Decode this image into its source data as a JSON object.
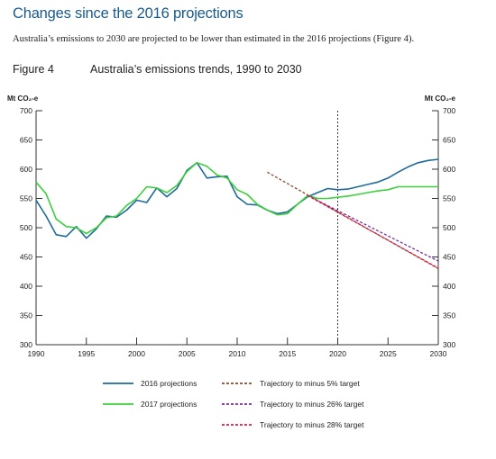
{
  "heading": "Changes since the 2016 projections",
  "intro": "Australia’s emissions to 2030 are projected to be lower than estimated in the 2016 projections (Figure 4).",
  "figure": {
    "number": "Figure 4",
    "title": "Australia’s emissions trends, 1990 to 2030"
  },
  "chart_data": {
    "type": "line",
    "title": "Australia’s emissions trends, 1990 to 2030",
    "ylabel_left": "Mt CO₂-e",
    "ylabel_right": "Mt CO₂-e",
    "xlim": [
      1990,
      2030
    ],
    "ylim": [
      300,
      700
    ],
    "x_ticks": [
      1990,
      1995,
      2000,
      2005,
      2010,
      2015,
      2020,
      2025,
      2030
    ],
    "y_ticks": [
      300,
      350,
      400,
      450,
      500,
      550,
      600,
      650,
      700
    ],
    "vertical_marker_x": 2020,
    "grid": false,
    "series": [
      {
        "name": "2016 projections",
        "color": "#1f6a9a",
        "style": "solid",
        "x": [
          1990,
          1991,
          1992,
          1993,
          1994,
          1995,
          1996,
          1997,
          1998,
          1999,
          2000,
          2001,
          2002,
          2003,
          2004,
          2005,
          2006,
          2007,
          2008,
          2009,
          2010,
          2011,
          2012,
          2013,
          2014,
          2015,
          2016,
          2017,
          2018,
          2019,
          2020,
          2021,
          2022,
          2023,
          2024,
          2025,
          2026,
          2027,
          2028,
          2029,
          2030
        ],
        "y": [
          547,
          520,
          488,
          485,
          502,
          482,
          498,
          520,
          518,
          530,
          547,
          543,
          568,
          553,
          567,
          598,
          611,
          585,
          587,
          588,
          553,
          540,
          539,
          530,
          524,
          527,
          540,
          553,
          560,
          567,
          565,
          566,
          570,
          574,
          578,
          585,
          595,
          604,
          611,
          615,
          617
        ]
      },
      {
        "name": "2017 projections",
        "color": "#3ecf3e",
        "style": "solid",
        "x": [
          1990,
          1991,
          1992,
          1993,
          1994,
          1995,
          1996,
          1997,
          1998,
          1999,
          2000,
          2001,
          2002,
          2003,
          2004,
          2005,
          2006,
          2007,
          2008,
          2009,
          2010,
          2011,
          2012,
          2013,
          2014,
          2015,
          2016,
          2017,
          2018,
          2019,
          2020,
          2021,
          2022,
          2023,
          2024,
          2025,
          2026,
          2027,
          2028,
          2029,
          2030
        ],
        "y": [
          578,
          558,
          515,
          502,
          500,
          490,
          500,
          517,
          520,
          538,
          550,
          570,
          568,
          560,
          572,
          596,
          611,
          605,
          590,
          585,
          565,
          557,
          540,
          530,
          522,
          524,
          540,
          555,
          550,
          550,
          552,
          554,
          557,
          560,
          563,
          565,
          570,
          570,
          570,
          570,
          570
        ]
      },
      {
        "name": "Trajectory to minus 5% target",
        "color": "#8b4a2b",
        "style": "dashed",
        "x": [
          2013,
          2030
        ],
        "y": [
          595,
          430
        ]
      },
      {
        "name": "Trajectory to minus 26% target",
        "color": "#7a2e9a",
        "style": "dashed",
        "x": [
          2017,
          2030
        ],
        "y": [
          555,
          443
        ]
      },
      {
        "name": "Trajectory to minus 28% target",
        "color": "#e0184e",
        "style": "dashed",
        "x": [
          2017,
          2030
        ],
        "y": [
          555,
          431
        ]
      }
    ]
  }
}
